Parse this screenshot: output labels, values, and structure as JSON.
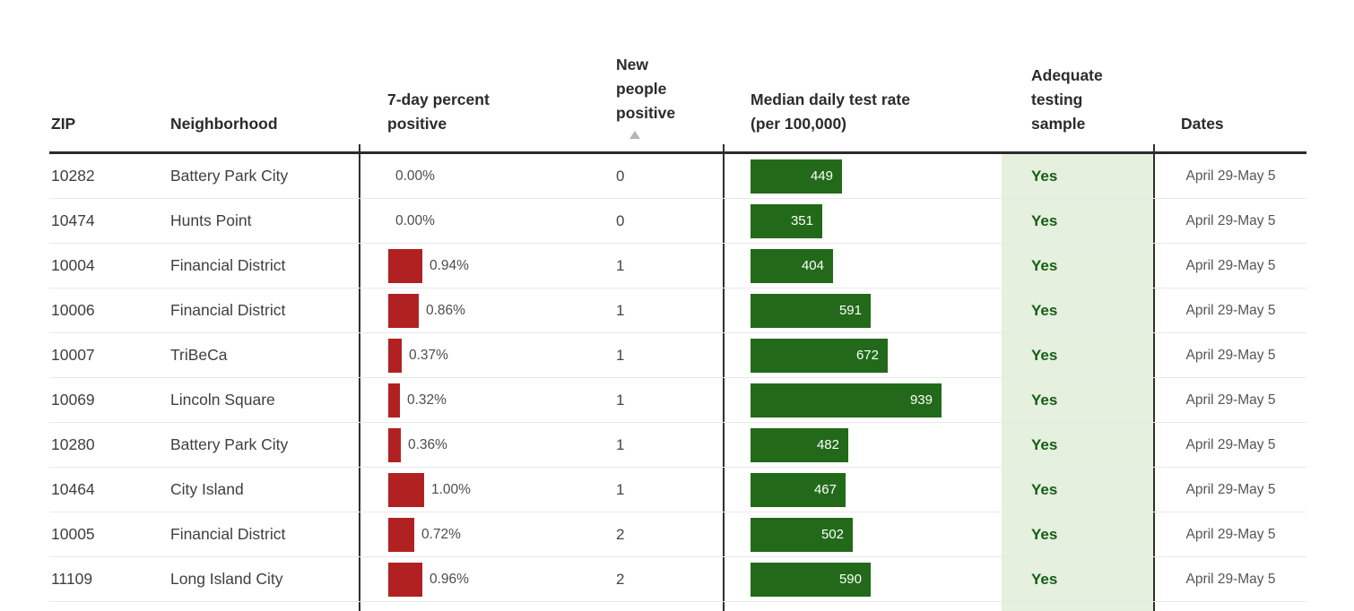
{
  "header": {
    "zip": "ZIP",
    "neighborhood": "Neighborhood",
    "pct_positive": "7-day percent\npositive",
    "new_positive": "New\npeople\npositive",
    "test_rate": "Median daily test rate\n(per 100,000)",
    "adequate": "Adequate\ntesting\nsample",
    "dates": "Dates",
    "sorted_column": "New people positive",
    "sort_direction": "ascending"
  },
  "rows": [
    {
      "zip": "10282",
      "neighborhood": "Battery Park City",
      "pct_display": "0.00%",
      "pct_value": 0.0,
      "new_positive": "0",
      "test_rate": 449,
      "adequate": "Yes",
      "dates": "April 29-May 5"
    },
    {
      "zip": "10474",
      "neighborhood": "Hunts Point",
      "pct_display": "0.00%",
      "pct_value": 0.0,
      "new_positive": "0",
      "test_rate": 351,
      "adequate": "Yes",
      "dates": "April 29-May 5"
    },
    {
      "zip": "10004",
      "neighborhood": "Financial District",
      "pct_display": "0.94%",
      "pct_value": 0.94,
      "new_positive": "1",
      "test_rate": 404,
      "adequate": "Yes",
      "dates": "April 29-May 5"
    },
    {
      "zip": "10006",
      "neighborhood": "Financial District",
      "pct_display": "0.86%",
      "pct_value": 0.86,
      "new_positive": "1",
      "test_rate": 591,
      "adequate": "Yes",
      "dates": "April 29-May 5"
    },
    {
      "zip": "10007",
      "neighborhood": "TriBeCa",
      "pct_display": "0.37%",
      "pct_value": 0.37,
      "new_positive": "1",
      "test_rate": 672,
      "adequate": "Yes",
      "dates": "April 29-May 5"
    },
    {
      "zip": "10069",
      "neighborhood": "Lincoln Square",
      "pct_display": "0.32%",
      "pct_value": 0.32,
      "new_positive": "1",
      "test_rate": 939,
      "adequate": "Yes",
      "dates": "April 29-May 5"
    },
    {
      "zip": "10280",
      "neighborhood": "Battery Park City",
      "pct_display": "0.36%",
      "pct_value": 0.36,
      "new_positive": "1",
      "test_rate": 482,
      "adequate": "Yes",
      "dates": "April 29-May 5"
    },
    {
      "zip": "10464",
      "neighborhood": "City Island",
      "pct_display": "1.00%",
      "pct_value": 1.0,
      "new_positive": "1",
      "test_rate": 467,
      "adequate": "Yes",
      "dates": "April 29-May 5"
    },
    {
      "zip": "10005",
      "neighborhood": "Financial District",
      "pct_display": "0.72%",
      "pct_value": 0.72,
      "new_positive": "2",
      "test_rate": 502,
      "adequate": "Yes",
      "dates": "April 29-May 5"
    },
    {
      "zip": "11109",
      "neighborhood": "Long Island City",
      "pct_display": "0.96%",
      "pct_value": 0.96,
      "new_positive": "2",
      "test_rate": 590,
      "adequate": "Yes",
      "dates": "April 29-May 5"
    }
  ],
  "colors": {
    "negative_bar_red": "#b22121",
    "positive_bar_green": "#226a19",
    "adequate_bg": "#e5f0de",
    "adequate_text": "#155e15",
    "sort_arrow": "#b5b5b5"
  }
}
